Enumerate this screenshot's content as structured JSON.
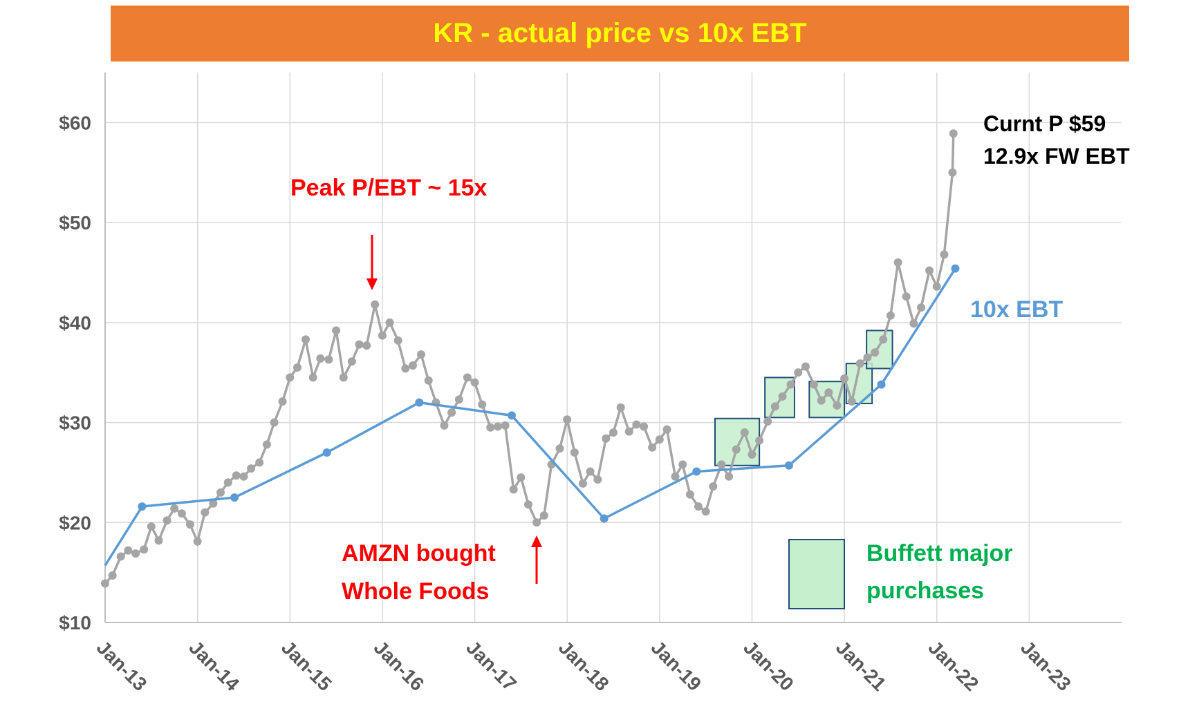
{
  "chart_data": {
    "type": "line",
    "title": "KR - actual price vs 10x EBT",
    "title_colors": {
      "background": "#ed7d31",
      "text": "#ffff00"
    },
    "ylim": [
      10,
      65
    ],
    "yticks": [
      {
        "value": 10,
        "label": "$10"
      },
      {
        "value": 20,
        "label": "$20"
      },
      {
        "value": 30,
        "label": "$30"
      },
      {
        "value": 40,
        "label": "$40"
      },
      {
        "value": 50,
        "label": "$50"
      },
      {
        "value": 60,
        "label": "$60"
      }
    ],
    "xlim": [
      2013.0,
      2024.0
    ],
    "xticks": [
      {
        "value": 2013,
        "label": "Jan-13"
      },
      {
        "value": 2014,
        "label": "Jan-14"
      },
      {
        "value": 2015,
        "label": "Jan-15"
      },
      {
        "value": 2016,
        "label": "Jan-16"
      },
      {
        "value": 2017,
        "label": "Jan-17"
      },
      {
        "value": 2018,
        "label": "Jan-18"
      },
      {
        "value": 2019,
        "label": "Jan-19"
      },
      {
        "value": 2020,
        "label": "Jan-20"
      },
      {
        "value": 2021,
        "label": "Jan-21"
      },
      {
        "value": 2022,
        "label": "Jan-22"
      },
      {
        "value": 2023,
        "label": "Jan-23"
      }
    ],
    "series": [
      {
        "name": "Actual price",
        "color": "#a5a5a5",
        "x": [
          2013.0,
          2013.08,
          2013.17,
          2013.25,
          2013.33,
          2013.42,
          2013.5,
          2013.58,
          2013.67,
          2013.75,
          2013.83,
          2013.92,
          2014.0,
          2014.08,
          2014.17,
          2014.25,
          2014.33,
          2014.42,
          2014.5,
          2014.58,
          2014.67,
          2014.75,
          2014.83,
          2014.92,
          2015.0,
          2015.08,
          2015.17,
          2015.25,
          2015.33,
          2015.42,
          2015.5,
          2015.58,
          2015.67,
          2015.75,
          2015.83,
          2015.92,
          2016.0,
          2016.08,
          2016.17,
          2016.25,
          2016.33,
          2016.42,
          2016.5,
          2016.58,
          2016.67,
          2016.75,
          2016.83,
          2016.92,
          2017.0,
          2017.08,
          2017.17,
          2017.25,
          2017.33,
          2017.42,
          2017.5,
          2017.58,
          2017.67,
          2017.75,
          2017.83,
          2017.92,
          2018.0,
          2018.08,
          2018.17,
          2018.25,
          2018.33,
          2018.42,
          2018.5,
          2018.58,
          2018.67,
          2018.75,
          2018.83,
          2018.92,
          2019.0,
          2019.08,
          2019.17,
          2019.25,
          2019.33,
          2019.42,
          2019.5,
          2019.58,
          2019.67,
          2019.75,
          2019.83,
          2019.92,
          2020.0,
          2020.08,
          2020.17,
          2020.25,
          2020.33,
          2020.42,
          2020.5,
          2020.58,
          2020.67,
          2020.75,
          2020.83,
          2020.92,
          2021.0,
          2021.08,
          2021.17,
          2021.25,
          2021.33,
          2021.42,
          2021.5,
          2021.58,
          2021.67,
          2021.75,
          2021.83,
          2021.92,
          2022.0,
          2022.08,
          2022.17,
          2022.18
        ],
        "values": [
          13.9,
          14.7,
          16.6,
          17.2,
          16.9,
          17.3,
          19.6,
          18.2,
          20.2,
          21.4,
          20.9,
          19.8,
          18.1,
          21.0,
          21.9,
          23.0,
          24.0,
          24.7,
          24.6,
          25.4,
          26.0,
          27.8,
          30.0,
          32.1,
          34.5,
          35.5,
          38.3,
          34.5,
          36.4,
          36.3,
          39.2,
          34.5,
          36.1,
          37.8,
          37.7,
          41.8,
          38.7,
          40.0,
          38.2,
          35.4,
          35.7,
          36.8,
          34.2,
          32.0,
          29.7,
          31.0,
          32.3,
          34.5,
          34.0,
          31.8,
          29.5,
          29.6,
          29.7,
          23.3,
          24.5,
          21.8,
          20.0,
          20.7,
          25.8,
          27.4,
          30.3,
          27.0,
          23.9,
          25.1,
          24.3,
          28.4,
          29.0,
          31.5,
          29.1,
          29.8,
          29.6,
          27.5,
          28.3,
          29.3,
          24.6,
          25.8,
          22.8,
          21.6,
          21.1,
          23.6,
          25.8,
          24.6,
          27.3,
          29.0,
          26.8,
          28.2,
          30.1,
          31.6,
          32.6,
          33.8,
          35.0,
          35.6,
          33.8,
          32.2,
          33.0,
          31.7,
          34.4,
          32.1,
          35.9,
          36.5,
          37.0,
          38.3,
          40.7,
          46.0,
          42.6,
          39.9,
          41.5,
          45.2,
          43.6,
          46.8,
          55.0,
          58.9
        ]
      },
      {
        "name": "10x EBT",
        "color": "#5b9bd5",
        "x": [
          2013.0,
          2013.4,
          2014.4,
          2015.4,
          2016.4,
          2017.4,
          2018.4,
          2019.4,
          2020.4,
          2021.4,
          2022.2
        ],
        "values": [
          15.7,
          21.6,
          22.5,
          27.0,
          32.0,
          30.7,
          20.4,
          25.1,
          25.7,
          33.8,
          45.4
        ],
        "marker_start_index": 1
      }
    ],
    "legend": [
      {
        "label": "Buffett major purchases",
        "swatch": "green-box",
        "fill": "#c6efce",
        "stroke": "#1f4e79"
      }
    ],
    "buffett_purchase_boxes": [
      {
        "x0": 2019.6,
        "x1": 2020.08,
        "y0": 25.7,
        "y1": 30.4
      },
      {
        "x0": 2020.14,
        "x1": 2020.46,
        "y0": 30.5,
        "y1": 34.5
      },
      {
        "x0": 2020.62,
        "x1": 2021.0,
        "y0": 30.5,
        "y1": 34.1
      },
      {
        "x0": 2021.02,
        "x1": 2021.3,
        "y0": 31.9,
        "y1": 35.9
      },
      {
        "x0": 2021.24,
        "x1": 2021.52,
        "y0": 35.4,
        "y1": 39.2
      }
    ],
    "annotations": [
      {
        "text": "Peak P/EBT ~ 15x",
        "color": "#ff0000",
        "arrow_to": [
          2015.9,
          41.8
        ]
      },
      {
        "lines": [
          "AMZN bought",
          "Whole Foods"
        ],
        "color": "#ff0000",
        "arrow_to": [
          2017.65,
          19.9
        ]
      },
      {
        "text": "10x EBT",
        "color": "#5b9bd5"
      },
      {
        "lines": [
          "Curnt P $59",
          "12.9x FW EBT"
        ],
        "color": "#000000"
      }
    ]
  }
}
